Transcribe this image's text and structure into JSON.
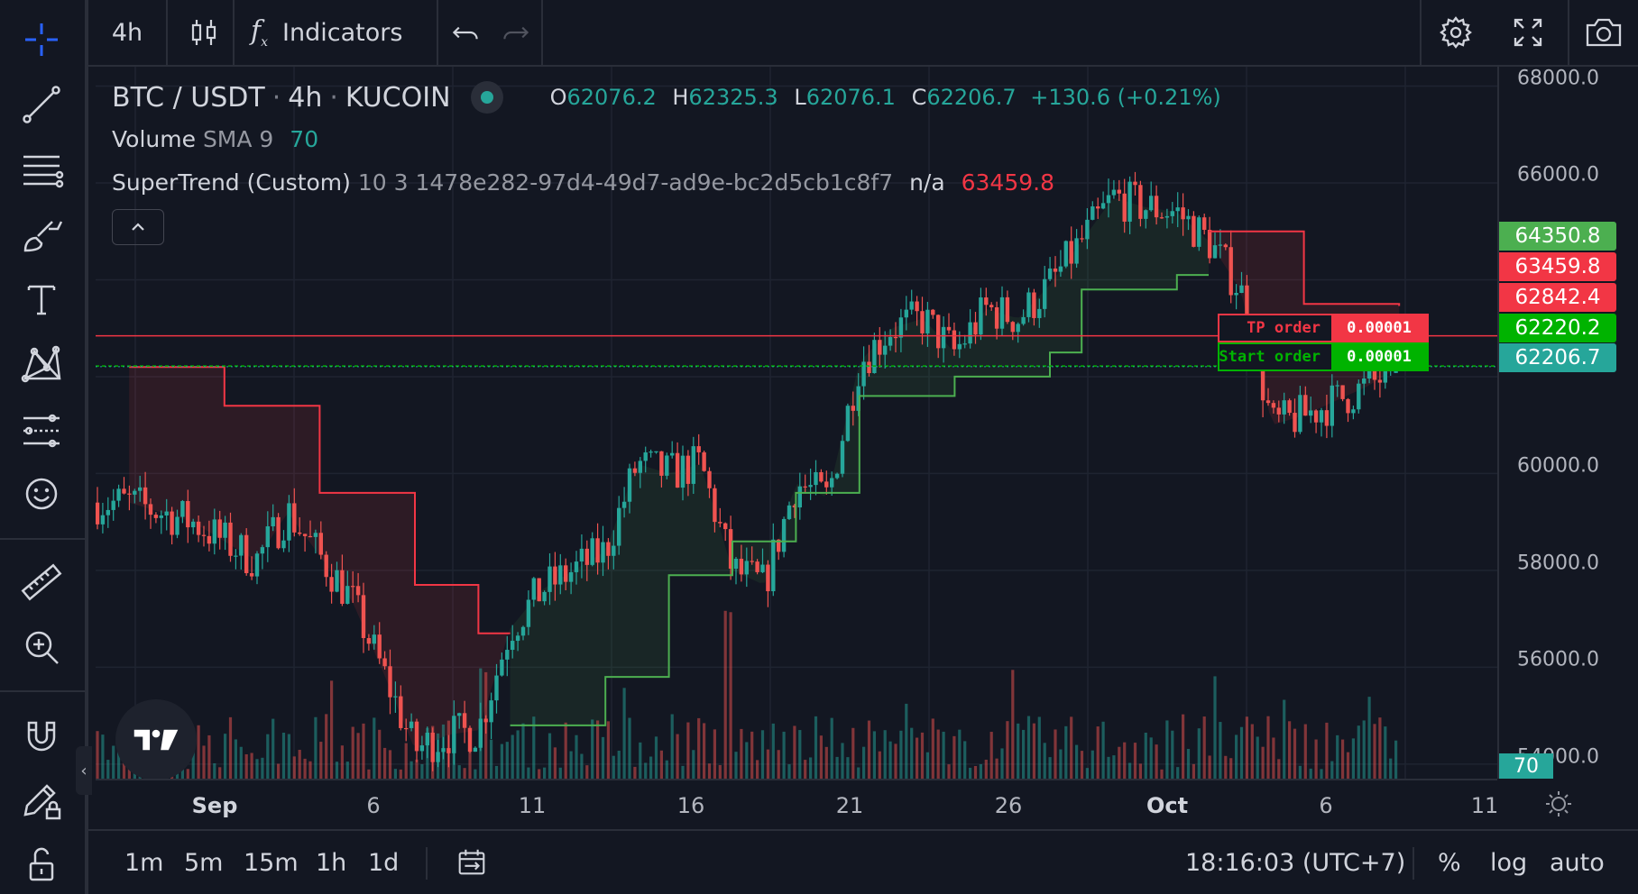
{
  "top_toolbar": {
    "interval": "4h",
    "indicators_label": "Indicators",
    "icons": [
      "candles-icon",
      "function-icon",
      "undo-icon",
      "redo-icon",
      "gear-icon",
      "fullscreen-icon",
      "camera-icon"
    ]
  },
  "left_toolbar": {
    "tools": [
      "crosshair-icon",
      "trend-line-icon",
      "fib-lines-icon",
      "brush-icon",
      "text-icon",
      "pattern-icon",
      "forecast-icon",
      "emoji-icon",
      "ruler-icon",
      "zoom-in-icon",
      "magnet-icon",
      "lock-drawing-icon",
      "unlock-icon"
    ]
  },
  "legend": {
    "symbol": "BTC / USDT",
    "sep1": "·",
    "interval": "4h",
    "sep2": "·",
    "exchange": "KUCOIN",
    "o_label": "O",
    "o_value": "62076.2",
    "h_label": "H",
    "h_value": "62325.3",
    "l_label": "L",
    "l_value": "62076.1",
    "c_label": "C",
    "c_value": "62206.7",
    "change": "+130.6 (+0.21%)",
    "volume": {
      "name": "Volume",
      "args": "SMA 9",
      "value": "70"
    },
    "supertrend": {
      "name": "SuperTrend (Custom)",
      "args": "10 3 1478e282-97d4-49d7-ad9e-bc2d5cb1c8f7",
      "value_na": "n/a",
      "value": "63459.8"
    }
  },
  "orders": [
    {
      "name": "TP order",
      "qty": "0.00001",
      "color": "#f23645"
    },
    {
      "name": "Start order",
      "qty": "0.00001",
      "color": "#00b300"
    }
  ],
  "price_axis": {
    "labels": [
      "68000.0",
      "66000.0",
      "60000.0",
      "58000.0",
      "56000.0",
      "54000.0"
    ],
    "tags": [
      {
        "value": "64350.8",
        "color": "#4caf50"
      },
      {
        "value": "63459.8",
        "color": "#f23645"
      },
      {
        "value": "62842.4",
        "color": "#f23645"
      },
      {
        "value": "62220.2",
        "color": "#00b300"
      },
      {
        "value": "62206.7",
        "color": "#26a69a"
      }
    ],
    "volume_tag": "70"
  },
  "time_axis": {
    "labels": [
      "Sep",
      "6",
      "11",
      "16",
      "21",
      "26",
      "Oct",
      "6",
      "11"
    ]
  },
  "bottom_toolbar": {
    "intervals": [
      "1m",
      "5m",
      "15m",
      "1h",
      "1d"
    ],
    "clock": "18:16:03 (UTC+7)",
    "percent": "%",
    "log": "log",
    "auto": "auto"
  },
  "colors": {
    "background": "#131722",
    "up": "#26a69a",
    "down": "#ef5350",
    "st_up": "#4caf50",
    "st_down": "#f23645"
  },
  "chart_data": {
    "type": "candlestick",
    "symbol": "BTC / USDT",
    "interval": "4h",
    "y_range": [
      53700,
      68400
    ],
    "price_ticks": [
      54000,
      56000,
      58000,
      60000,
      66000,
      68000
    ],
    "date_ticks": [
      "Sep",
      "6",
      "11",
      "16",
      "21",
      "26",
      "Oct",
      "6",
      "11"
    ],
    "close_path": [
      {
        "date": "2024-08-29",
        "close": 59400
      },
      {
        "date": "2024-08-31",
        "close": 59000
      },
      {
        "date": "2024-09-02",
        "close": 58200
      },
      {
        "date": "2024-09-03",
        "close": 59200
      },
      {
        "date": "2024-09-05",
        "close": 57400
      },
      {
        "date": "2024-09-06",
        "close": 55900
      },
      {
        "date": "2024-09-07",
        "close": 54300
      },
      {
        "date": "2024-09-08",
        "close": 54600
      },
      {
        "date": "2024-09-09",
        "close": 54700
      },
      {
        "date": "2024-09-10",
        "close": 56800
      },
      {
        "date": "2024-09-11",
        "close": 57600
      },
      {
        "date": "2024-09-12",
        "close": 58000
      },
      {
        "date": "2024-09-13",
        "close": 58400
      },
      {
        "date": "2024-09-14",
        "close": 60200
      },
      {
        "date": "2024-09-15",
        "close": 60000
      },
      {
        "date": "2024-09-16",
        "close": 60200
      },
      {
        "date": "2024-09-17",
        "close": 58000
      },
      {
        "date": "2024-09-18",
        "close": 57700
      },
      {
        "date": "2024-09-19",
        "close": 59800
      },
      {
        "date": "2024-09-20",
        "close": 59500
      },
      {
        "date": "2024-09-21",
        "close": 62300
      },
      {
        "date": "2024-09-22",
        "close": 63000
      },
      {
        "date": "2024-09-23",
        "close": 63200
      },
      {
        "date": "2024-09-24",
        "close": 62500
      },
      {
        "date": "2024-09-25",
        "close": 63400
      },
      {
        "date": "2024-09-26",
        "close": 63200
      },
      {
        "date": "2024-09-27",
        "close": 63900
      },
      {
        "date": "2024-09-28",
        "close": 64800
      },
      {
        "date": "2024-09-29",
        "close": 65700
      },
      {
        "date": "2024-09-30",
        "close": 65500
      },
      {
        "date": "2024-10-01",
        "close": 65400
      },
      {
        "date": "2024-10-02",
        "close": 64800
      },
      {
        "date": "2024-10-03",
        "close": 63800
      },
      {
        "date": "2024-10-04",
        "close": 61000
      },
      {
        "date": "2024-10-05",
        "close": 61200
      },
      {
        "date": "2024-10-06",
        "close": 61500
      },
      {
        "date": "2024-10-07",
        "close": 61800
      },
      {
        "date": "2024-10-08",
        "close": 62206.7
      }
    ],
    "supertrend": [
      {
        "date": "2024-08-29",
        "value": 62200,
        "trend": "down"
      },
      {
        "date": "2024-09-01",
        "value": 61400,
        "trend": "down"
      },
      {
        "date": "2024-09-04",
        "value": 59600,
        "trend": "down"
      },
      {
        "date": "2024-09-07",
        "value": 57700,
        "trend": "down"
      },
      {
        "date": "2024-09-09",
        "value": 56700,
        "trend": "down"
      },
      {
        "date": "2024-09-10",
        "value": 54800,
        "trend": "up"
      },
      {
        "date": "2024-09-13",
        "value": 55800,
        "trend": "up"
      },
      {
        "date": "2024-09-15",
        "value": 57900,
        "trend": "up"
      },
      {
        "date": "2024-09-17",
        "value": 58600,
        "trend": "up"
      },
      {
        "date": "2024-09-19",
        "value": 59600,
        "trend": "up"
      },
      {
        "date": "2024-09-21",
        "value": 61600,
        "trend": "up"
      },
      {
        "date": "2024-09-24",
        "value": 62000,
        "trend": "up"
      },
      {
        "date": "2024-09-27",
        "value": 62500,
        "trend": "up"
      },
      {
        "date": "2024-09-28",
        "value": 63800,
        "trend": "up"
      },
      {
        "date": "2024-10-01",
        "value": 64100,
        "trend": "up"
      },
      {
        "date": "2024-10-02",
        "value": 65000,
        "trend": "down"
      },
      {
        "date": "2024-10-05",
        "value": 63500,
        "trend": "down"
      },
      {
        "date": "2024-10-08",
        "value": 63459.8,
        "trend": "down"
      }
    ],
    "horizontal_lines": [
      {
        "label": "TP order",
        "price": 62842.4,
        "color": "#f23645"
      },
      {
        "label": "Start order",
        "price": 62220.2,
        "color": "#00b300"
      }
    ]
  }
}
